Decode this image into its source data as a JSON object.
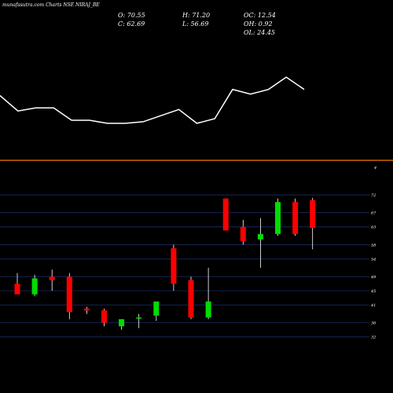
{
  "header": {
    "source": "munafasutra.com Charts NSE NIRAJ_BE",
    "o_label": "O: 70.55",
    "h_label": "H: 71.20",
    "oc_label": "OC: 12.54",
    "c_label": "C: 62.69",
    "l_label": "L: 56.69",
    "oh_label": "OH: 0.92",
    "ol_label": "OL: 24.45"
  },
  "colors": {
    "background": "#000000",
    "up": "#00dd00",
    "down": "#ff0000",
    "line": "#ffffff",
    "divider": "#cc6600",
    "grid": "#1a2a66"
  },
  "chart_data": [
    {
      "type": "line",
      "x": [
        1,
        2,
        3,
        4,
        5,
        6,
        7,
        8,
        9,
        10,
        11,
        12,
        13,
        14,
        15,
        16,
        17,
        18
      ],
      "values": [
        45,
        40,
        41,
        41,
        37,
        37,
        36,
        36,
        36.5,
        38.5,
        40.5,
        36,
        37.5,
        47,
        45.5,
        47,
        51,
        47
      ],
      "ylim": [
        25,
        62
      ]
    },
    {
      "type": "candlestick",
      "x": [
        1,
        2,
        3,
        4,
        5,
        6,
        7,
        8,
        9,
        10,
        11,
        12,
        13,
        14,
        15,
        16,
        17,
        18
      ],
      "open": [
        47,
        44,
        49,
        49,
        40,
        39.5,
        35,
        37.5,
        38,
        57,
        48,
        37.5,
        71,
        63,
        59.5,
        61,
        70,
        70.55
      ],
      "high": [
        50,
        49.5,
        51,
        50,
        40.5,
        40,
        37,
        38.5,
        42,
        58,
        49,
        51.5,
        71,
        65,
        65.5,
        71,
        71,
        71.2
      ],
      "low": [
        44,
        43.5,
        45,
        37,
        38.5,
        35,
        34,
        34.5,
        36.5,
        45,
        37,
        37,
        62,
        58,
        51.5,
        60.5,
        60.5,
        56.69
      ],
      "close": [
        44,
        48.5,
        48,
        39,
        39.5,
        36,
        37,
        37.5,
        42,
        47,
        37.5,
        42,
        62,
        59,
        61,
        70,
        61,
        62.69
      ],
      "ylim": [
        29.5,
        76
      ],
      "y_ticks": [
        32,
        36,
        41,
        45,
        49,
        54,
        58,
        63,
        67,
        72
      ],
      "tick_labels": [
        "32",
        "36",
        "41",
        "45",
        "49",
        "54",
        "58",
        "63",
        "67",
        "72"
      ],
      "top_label": "4"
    }
  ]
}
